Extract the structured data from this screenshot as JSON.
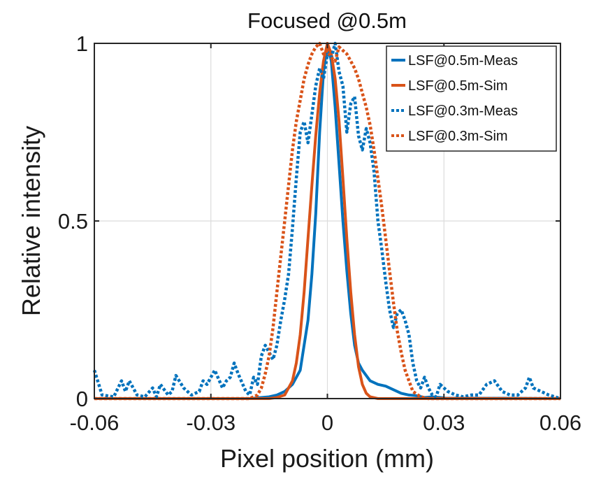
{
  "chart_data": {
    "type": "line",
    "title": "Focused @0.5m",
    "xlabel": "Pixel position (mm)",
    "ylabel": "Relative intensity",
    "xlim": [
      -0.06,
      0.06
    ],
    "ylim": [
      0,
      1
    ],
    "xticks": [
      -0.06,
      -0.03,
      0,
      0.03,
      0.06
    ],
    "xtick_labels": [
      "-0.06",
      "-0.03",
      "0",
      "0.03",
      "0.06"
    ],
    "yticks": [
      0,
      0.5,
      1
    ],
    "ytick_labels": [
      "0",
      "0.5",
      "1"
    ],
    "grid": true,
    "legend_position": "top-right",
    "series": [
      {
        "name": "LSF@0.5m-Meas",
        "color": "#0072BD",
        "style": "solid",
        "points": [
          [
            -0.06,
            0
          ],
          [
            -0.02,
            0
          ],
          [
            -0.015,
            0.005
          ],
          [
            -0.013,
            0.01
          ],
          [
            -0.011,
            0.02
          ],
          [
            -0.009,
            0.04
          ],
          [
            -0.007,
            0.08
          ],
          [
            -0.005,
            0.22
          ],
          [
            -0.004,
            0.35
          ],
          [
            -0.003,
            0.52
          ],
          [
            -0.002,
            0.75
          ],
          [
            -0.001,
            0.92
          ],
          [
            0,
            1.0
          ],
          [
            0.001,
            0.95
          ],
          [
            0.002,
            0.82
          ],
          [
            0.003,
            0.66
          ],
          [
            0.004,
            0.5
          ],
          [
            0.005,
            0.36
          ],
          [
            0.006,
            0.24
          ],
          [
            0.007,
            0.15
          ],
          [
            0.008,
            0.1
          ],
          [
            0.009,
            0.08
          ],
          [
            0.011,
            0.05
          ],
          [
            0.013,
            0.04
          ],
          [
            0.015,
            0.035
          ],
          [
            0.017,
            0.025
          ],
          [
            0.019,
            0.015
          ],
          [
            0.021,
            0.01
          ],
          [
            0.023,
            0.008
          ],
          [
            0.025,
            0.003
          ],
          [
            0.027,
            0.005
          ],
          [
            0.03,
            0.002
          ],
          [
            0.06,
            0
          ]
        ]
      },
      {
        "name": "LSF@0.5m-Sim",
        "color": "#D95319",
        "style": "solid",
        "points": [
          [
            -0.06,
            0
          ],
          [
            -0.015,
            0
          ],
          [
            -0.013,
            0.003
          ],
          [
            -0.011,
            0.01
          ],
          [
            -0.009,
            0.05
          ],
          [
            -0.008,
            0.1
          ],
          [
            -0.007,
            0.18
          ],
          [
            -0.006,
            0.3
          ],
          [
            -0.005,
            0.45
          ],
          [
            -0.004,
            0.6
          ],
          [
            -0.003,
            0.74
          ],
          [
            -0.002,
            0.86
          ],
          [
            -0.001,
            0.95
          ],
          [
            0,
            1.0
          ],
          [
            0.001,
            0.97
          ],
          [
            0.002,
            0.9
          ],
          [
            0.003,
            0.78
          ],
          [
            0.004,
            0.62
          ],
          [
            0.005,
            0.45
          ],
          [
            0.006,
            0.3
          ],
          [
            0.007,
            0.18
          ],
          [
            0.008,
            0.09
          ],
          [
            0.009,
            0.04
          ],
          [
            0.01,
            0.015
          ],
          [
            0.011,
            0.005
          ],
          [
            0.013,
            0
          ],
          [
            0.06,
            0
          ]
        ]
      },
      {
        "name": "LSF@0.3m-Meas",
        "color": "#0072BD",
        "style": "dotted",
        "points": [
          [
            -0.06,
            0.08
          ],
          [
            -0.058,
            0.01
          ],
          [
            -0.055,
            0.005
          ],
          [
            -0.053,
            0.05
          ],
          [
            -0.052,
            0.02
          ],
          [
            -0.051,
            0.05
          ],
          [
            -0.049,
            0.01
          ],
          [
            -0.047,
            0.005
          ],
          [
            -0.045,
            0.03
          ],
          [
            -0.044,
            0.005
          ],
          [
            -0.043,
            0.04
          ],
          [
            -0.041,
            0.01
          ],
          [
            -0.04,
            0.02
          ],
          [
            -0.039,
            0.065
          ],
          [
            -0.037,
            0.03
          ],
          [
            -0.035,
            0.01
          ],
          [
            -0.033,
            0.02
          ],
          [
            -0.032,
            0.05
          ],
          [
            -0.031,
            0.04
          ],
          [
            -0.029,
            0.08
          ],
          [
            -0.027,
            0.03
          ],
          [
            -0.026,
            0.05
          ],
          [
            -0.025,
            0.06
          ],
          [
            -0.024,
            0.1
          ],
          [
            -0.023,
            0.07
          ],
          [
            -0.021,
            0.02
          ],
          [
            -0.02,
            0.01
          ],
          [
            -0.019,
            0.06
          ],
          [
            -0.018,
            0.04
          ],
          [
            -0.017,
            0.12
          ],
          [
            -0.016,
            0.15
          ],
          [
            -0.015,
            0.13
          ],
          [
            -0.014,
            0.11
          ],
          [
            -0.013,
            0.15
          ],
          [
            -0.012,
            0.22
          ],
          [
            -0.011,
            0.28
          ],
          [
            -0.01,
            0.35
          ],
          [
            -0.009,
            0.48
          ],
          [
            -0.008,
            0.62
          ],
          [
            -0.007,
            0.75
          ],
          [
            -0.006,
            0.78
          ],
          [
            -0.005,
            0.72
          ],
          [
            -0.004,
            0.8
          ],
          [
            -0.003,
            0.88
          ],
          [
            -0.002,
            0.93
          ],
          [
            -0.001,
            0.9
          ],
          [
            0,
            0.97
          ],
          [
            0.001,
            0.96
          ],
          [
            0.002,
            1.0
          ],
          [
            0.003,
            0.92
          ],
          [
            0.004,
            0.88
          ],
          [
            0.005,
            0.75
          ],
          [
            0.006,
            0.83
          ],
          [
            0.007,
            0.85
          ],
          [
            0.008,
            0.74
          ],
          [
            0.009,
            0.7
          ],
          [
            0.01,
            0.76
          ],
          [
            0.011,
            0.72
          ],
          [
            0.012,
            0.64
          ],
          [
            0.013,
            0.5
          ],
          [
            0.014,
            0.42
          ],
          [
            0.015,
            0.33
          ],
          [
            0.016,
            0.25
          ],
          [
            0.017,
            0.2
          ],
          [
            0.018,
            0.24
          ],
          [
            0.019,
            0.25
          ],
          [
            0.02,
            0.22
          ],
          [
            0.021,
            0.18
          ],
          [
            0.022,
            0.1
          ],
          [
            0.023,
            0.05
          ],
          [
            0.024,
            0.03
          ],
          [
            0.025,
            0.06
          ],
          [
            0.026,
            0.03
          ],
          [
            0.027,
            0.01
          ],
          [
            0.028,
            0.005
          ],
          [
            0.029,
            0.04
          ],
          [
            0.031,
            0.02
          ],
          [
            0.033,
            0.01
          ],
          [
            0.035,
            0.005
          ],
          [
            0.037,
            0.01
          ],
          [
            0.039,
            0.01
          ],
          [
            0.041,
            0.04
          ],
          [
            0.043,
            0.05
          ],
          [
            0.045,
            0.02
          ],
          [
            0.047,
            0.01
          ],
          [
            0.049,
            0.01
          ],
          [
            0.051,
            0.03
          ],
          [
            0.052,
            0.06
          ],
          [
            0.053,
            0.03
          ],
          [
            0.055,
            0.02
          ],
          [
            0.057,
            0.01
          ],
          [
            0.06,
            0
          ]
        ]
      },
      {
        "name": "LSF@0.3m-Sim",
        "color": "#D95319",
        "style": "dotted",
        "points": [
          [
            -0.06,
            0
          ],
          [
            -0.02,
            0
          ],
          [
            -0.018,
            0.01
          ],
          [
            -0.017,
            0.03
          ],
          [
            -0.016,
            0.07
          ],
          [
            -0.015,
            0.12
          ],
          [
            -0.014,
            0.2
          ],
          [
            -0.013,
            0.3
          ],
          [
            -0.012,
            0.4
          ],
          [
            -0.011,
            0.5
          ],
          [
            -0.01,
            0.6
          ],
          [
            -0.009,
            0.7
          ],
          [
            -0.008,
            0.78
          ],
          [
            -0.007,
            0.84
          ],
          [
            -0.006,
            0.9
          ],
          [
            -0.005,
            0.94
          ],
          [
            -0.004,
            0.97
          ],
          [
            -0.003,
            0.99
          ],
          [
            -0.002,
            1.0
          ],
          [
            -0.001,
            0.97
          ],
          [
            0,
            0.98
          ],
          [
            0.001,
            0.96
          ],
          [
            0.002,
            0.95
          ],
          [
            0.003,
            0.99
          ],
          [
            0.004,
            0.98
          ],
          [
            0.005,
            0.97
          ],
          [
            0.006,
            0.95
          ],
          [
            0.007,
            0.93
          ],
          [
            0.008,
            0.9
          ],
          [
            0.009,
            0.86
          ],
          [
            0.01,
            0.82
          ],
          [
            0.011,
            0.77
          ],
          [
            0.012,
            0.7
          ],
          [
            0.013,
            0.62
          ],
          [
            0.014,
            0.54
          ],
          [
            0.015,
            0.45
          ],
          [
            0.016,
            0.36
          ],
          [
            0.017,
            0.27
          ],
          [
            0.018,
            0.19
          ],
          [
            0.019,
            0.13
          ],
          [
            0.02,
            0.08
          ],
          [
            0.021,
            0.05
          ],
          [
            0.022,
            0.02
          ],
          [
            0.024,
            0.005
          ],
          [
            0.026,
            0
          ],
          [
            0.06,
            0
          ]
        ]
      }
    ]
  }
}
